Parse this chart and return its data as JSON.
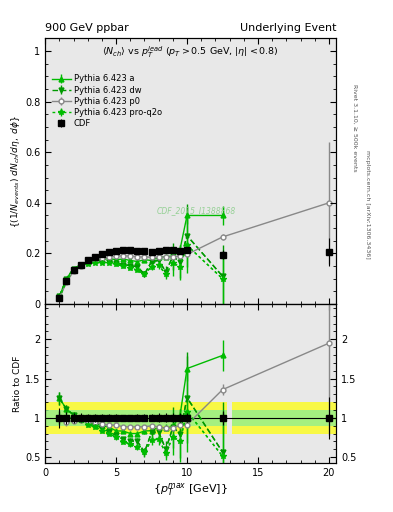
{
  "title_left": "900 GeV ppbar",
  "title_right": "Underlying Event",
  "subtitle": "<N_{ch}> vs p_{T}^{lead} (p_{T} > 0.5 GeV, |\\eta| < 0.8)",
  "ylabel_main": "((1/N_{events}) dN_{ch}/d\\eta, d\\phi)",
  "ylabel_ratio": "Ratio to CDF",
  "xlabel": "{p_{T}^{max} [GeV]}",
  "watermark": "CDF_2015_I1388868",
  "ylim_main": [
    0.0,
    1.05
  ],
  "ylim_ratio": [
    0.42,
    2.45
  ],
  "xlim": [
    0.0,
    20.5
  ],
  "cdf_x": [
    1.0,
    1.5,
    2.0,
    2.5,
    3.0,
    3.5,
    4.0,
    4.5,
    5.0,
    5.5,
    6.0,
    6.5,
    7.0,
    7.5,
    8.0,
    8.5,
    9.0,
    9.5,
    10.0,
    12.5,
    20.0
  ],
  "cdf_y": [
    0.024,
    0.09,
    0.135,
    0.155,
    0.175,
    0.185,
    0.196,
    0.204,
    0.21,
    0.214,
    0.215,
    0.21,
    0.21,
    0.206,
    0.21,
    0.214,
    0.214,
    0.21,
    0.215,
    0.195,
    0.205
  ],
  "cdf_yerr_lo": [
    0.003,
    0.007,
    0.009,
    0.009,
    0.009,
    0.009,
    0.009,
    0.009,
    0.009,
    0.009,
    0.009,
    0.009,
    0.009,
    0.009,
    0.012,
    0.012,
    0.012,
    0.012,
    0.012,
    0.018,
    0.055
  ],
  "cdf_yerr_hi": [
    0.003,
    0.007,
    0.009,
    0.009,
    0.009,
    0.009,
    0.009,
    0.009,
    0.009,
    0.009,
    0.009,
    0.009,
    0.009,
    0.009,
    0.012,
    0.012,
    0.012,
    0.012,
    0.012,
    0.018,
    0.055
  ],
  "pythia_a_x": [
    1.0,
    1.5,
    2.0,
    2.5,
    3.0,
    3.5,
    4.0,
    4.5,
    5.0,
    5.5,
    6.0,
    6.5,
    7.0,
    7.5,
    8.0,
    8.5,
    9.0,
    9.5,
    10.0,
    12.5
  ],
  "pythia_a_y": [
    0.03,
    0.1,
    0.14,
    0.155,
    0.165,
    0.172,
    0.176,
    0.18,
    0.175,
    0.178,
    0.172,
    0.168,
    0.175,
    0.172,
    0.185,
    0.187,
    0.19,
    0.215,
    0.35,
    0.35
  ],
  "pythia_a_yerr": [
    0.002,
    0.005,
    0.005,
    0.005,
    0.005,
    0.005,
    0.005,
    0.005,
    0.005,
    0.006,
    0.006,
    0.006,
    0.007,
    0.007,
    0.009,
    0.009,
    0.013,
    0.018,
    0.035,
    0.038
  ],
  "pythia_dw_x": [
    1.0,
    1.5,
    2.0,
    2.5,
    3.0,
    3.5,
    4.0,
    4.5,
    5.0,
    5.5,
    6.0,
    6.5,
    7.0,
    7.5,
    8.0,
    8.5,
    9.0,
    9.5,
    10.0,
    12.5
  ],
  "pythia_dw_y": [
    0.03,
    0.1,
    0.14,
    0.153,
    0.163,
    0.17,
    0.17,
    0.168,
    0.163,
    0.155,
    0.152,
    0.147,
    0.118,
    0.168,
    0.172,
    0.128,
    0.188,
    0.168,
    0.27,
    0.11
  ],
  "pythia_dw_yerr": [
    0.002,
    0.005,
    0.005,
    0.005,
    0.005,
    0.005,
    0.005,
    0.005,
    0.006,
    0.006,
    0.008,
    0.008,
    0.012,
    0.013,
    0.018,
    0.022,
    0.055,
    0.065,
    0.125,
    0.125
  ],
  "pythia_p0_x": [
    1.0,
    1.5,
    2.0,
    2.5,
    3.0,
    3.5,
    4.0,
    4.5,
    5.0,
    5.5,
    6.0,
    6.5,
    7.0,
    7.5,
    8.0,
    8.5,
    9.0,
    9.5,
    10.0,
    12.5,
    20.0
  ],
  "pythia_p0_y": [
    0.024,
    0.085,
    0.13,
    0.15,
    0.165,
    0.175,
    0.18,
    0.185,
    0.19,
    0.19,
    0.19,
    0.186,
    0.186,
    0.185,
    0.185,
    0.185,
    0.186,
    0.19,
    0.196,
    0.265,
    0.4
  ],
  "pythia_p0_yerr": [
    0.002,
    0.004,
    0.004,
    0.005,
    0.005,
    0.005,
    0.005,
    0.005,
    0.005,
    0.005,
    0.005,
    0.005,
    0.005,
    0.005,
    0.006,
    0.006,
    0.007,
    0.008,
    0.009,
    0.013,
    0.24
  ],
  "pythia_proq2o_x": [
    1.0,
    1.5,
    2.0,
    2.5,
    3.0,
    3.5,
    4.0,
    4.5,
    5.0,
    5.5,
    6.0,
    6.5,
    7.0,
    7.5,
    8.0,
    8.5,
    9.0,
    9.5,
    10.0,
    12.5
  ],
  "pythia_proq2o_y": [
    0.024,
    0.09,
    0.135,
    0.15,
    0.16,
    0.164,
    0.164,
    0.163,
    0.158,
    0.149,
    0.143,
    0.133,
    0.118,
    0.148,
    0.153,
    0.118,
    0.162,
    0.148,
    0.232,
    0.1
  ],
  "pythia_proq2o_yerr": [
    0.002,
    0.005,
    0.005,
    0.005,
    0.005,
    0.005,
    0.005,
    0.005,
    0.006,
    0.006,
    0.008,
    0.008,
    0.011,
    0.012,
    0.015,
    0.018,
    0.05,
    0.055,
    0.11,
    0.11
  ],
  "color_cdf": "#000000",
  "color_pythia_a": "#00bb00",
  "color_pythia_dw": "#009900",
  "color_pythia_p0": "#888888",
  "color_pythia_proq2o": "#00bb00",
  "bg_color": "#e8e8e8",
  "ratio_band_yellow_lo": 0.8,
  "ratio_band_yellow_hi": 1.2,
  "ratio_band_green_lo": 0.9,
  "ratio_band_green_hi": 1.1,
  "ratio_band_x1": 0.0,
  "ratio_band_x2": 12.8,
  "ratio_band2_x1": 13.2,
  "ratio_band2_x2": 20.5
}
